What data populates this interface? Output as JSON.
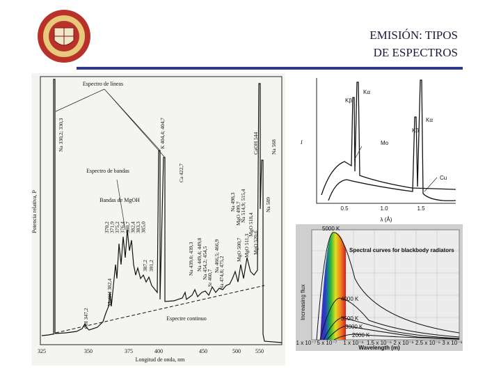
{
  "header": {
    "title_lines": [
      "EMISIÓN: TIPOS",
      "DE ESPECTROS"
    ]
  },
  "emission_figure": {
    "y_label": "Potencia relativa, P",
    "x_label": "Longitud de onda, nm",
    "x_ticks": [
      "325",
      "350",
      "375",
      "400",
      "450",
      "500",
      "550"
    ],
    "annotations": [
      "Espectro de líneas",
      "Espectro de bandas",
      "Bandas de MgOH",
      "Espectre continuo"
    ],
    "peak_labels": [
      "Na 330,2; 330,3",
      "K 404,4; 404,7",
      "Ca 422,7",
      "CaOH 544",
      "Na 568",
      "Na 589",
      "MgOH 382,4",
      "OH 347,2",
      "387,2",
      "391,2",
      "Na 439,0; 439,3",
      "Na 449,4; 449,8",
      "Na 454,2; 454,5",
      "Sr 460,7",
      "Na 466,5; 466,9",
      "Na 474,8; 475,2",
      "MgO 500,7",
      "Na 498,3",
      "MgO 499,7",
      "Na 514,9; 515,4",
      "MgO 511,3",
      "MgO 518,4",
      "MgO 520,6"
    ],
    "band_labels": [
      "370,2",
      "371,9",
      "375,2",
      "376,4",
      "380,7",
      "382,4",
      "383,3",
      "385,0"
    ]
  },
  "xray_figure": {
    "y_label": "I",
    "x_label": "λ (Å)",
    "x_ticks": [
      "0.5",
      "1.0",
      "1.5"
    ],
    "labels": [
      "Kβ",
      "Kα",
      "Kβ",
      "Kα",
      "Mo",
      "Cu"
    ]
  },
  "blackbody_figure": {
    "title": "Spectral curves for blackbody radiators",
    "y_label": "Increasing flux",
    "x_label": "Wavelength (m)",
    "curve_labels": [
      "5000 K",
      "4000 K",
      "3500 K",
      "3000 K",
      "2000 K"
    ],
    "x_ticks": [
      "1 x 10⁻⁷",
      "5 x 10⁻⁷",
      "1 x 10⁻⁶",
      "1.5 x 10⁻⁶",
      "2 x 10⁻⁶",
      "2.5 x 10⁻⁶",
      "3 x 10⁻⁶"
    ]
  }
}
